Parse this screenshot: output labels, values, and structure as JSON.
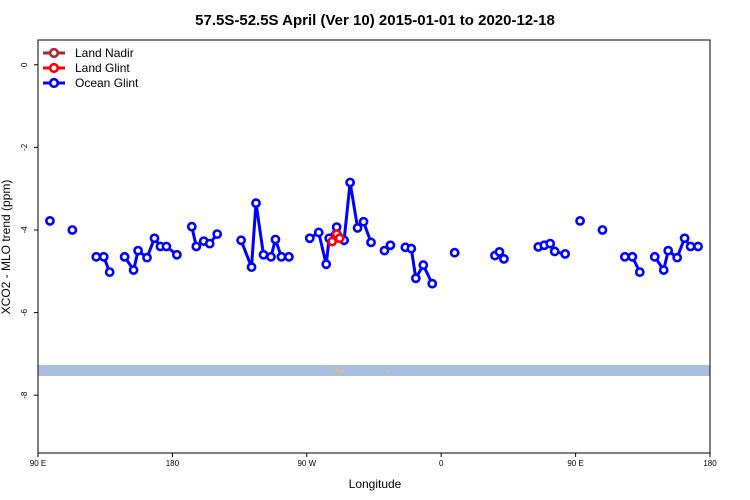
{
  "chart_data": {
    "type": "line",
    "title": "57.5S-52.5S April (Ver 10)   2015-01-01 to 2020-12-18",
    "xlabel": "Longitude",
    "ylabel": "XCO2 - MLO trend (ppm)",
    "x_ticks": [
      {
        "value": 90,
        "label": "90 E"
      },
      {
        "value": 180,
        "label": "180"
      },
      {
        "value": 270,
        "label": "90 W"
      },
      {
        "value": 360,
        "label": "0"
      },
      {
        "value": 450,
        "label": "90 E"
      },
      {
        "value": 540,
        "label": "180"
      }
    ],
    "xlim": [
      90,
      540
    ],
    "y_ticks": [
      0,
      -2,
      -4,
      -6,
      -8
    ],
    "ylim": [
      -9.4,
      0.6
    ],
    "grid": false,
    "legend": "top-left",
    "series": [
      {
        "name": "Land Nadir",
        "color": "#a52a2a",
        "segments": []
      },
      {
        "name": "Land Glint",
        "color": "#ff0000",
        "segments": [
          [
            [
              287,
              -4.28
            ],
            [
              290,
              -4.1
            ],
            [
              292,
              -4.2
            ]
          ]
        ]
      },
      {
        "name": "Ocean Glint",
        "color": "#0000ff",
        "segments": [
          [
            [
              98,
              -3.78
            ]
          ],
          [
            [
              113,
              -4.0
            ]
          ],
          [
            [
              129,
              -4.65
            ],
            [
              134,
              -4.65
            ],
            [
              138,
              -5.02
            ]
          ],
          [
            [
              148,
              -4.65
            ],
            [
              154,
              -4.97
            ],
            [
              157,
              -4.5
            ],
            [
              163,
              -4.67
            ],
            [
              168,
              -4.2
            ],
            [
              172,
              -4.4
            ],
            [
              176,
              -4.4
            ],
            [
              183,
              -4.6
            ]
          ],
          [
            [
              193,
              -3.92
            ],
            [
              196,
              -4.4
            ],
            [
              201,
              -4.27
            ],
            [
              205,
              -4.33
            ],
            [
              210,
              -4.1
            ]
          ],
          [
            [
              226,
              -4.25
            ],
            [
              233,
              -4.9
            ],
            [
              236,
              -3.35
            ],
            [
              241,
              -4.6
            ],
            [
              246,
              -4.65
            ],
            [
              249,
              -4.23
            ],
            [
              253,
              -4.65
            ],
            [
              258,
              -4.65
            ]
          ],
          [
            [
              272,
              -4.2
            ],
            [
              278,
              -4.06
            ],
            [
              283,
              -4.83
            ],
            [
              285,
              -4.2
            ],
            [
              290,
              -3.93
            ],
            [
              295,
              -4.25
            ],
            [
              299,
              -2.85
            ],
            [
              304,
              -3.95
            ],
            [
              308,
              -3.8
            ],
            [
              313,
              -4.3
            ]
          ],
          [
            [
              322,
              -4.5
            ],
            [
              326,
              -4.37
            ]
          ],
          [
            [
              336,
              -4.42
            ],
            [
              340,
              -4.45
            ],
            [
              343,
              -5.17
            ],
            [
              348,
              -4.85
            ],
            [
              354,
              -5.3
            ]
          ],
          [
            [
              369,
              -4.55
            ]
          ],
          [
            [
              396,
              -4.62
            ],
            [
              399,
              -4.53
            ],
            [
              402,
              -4.7
            ]
          ],
          [
            [
              425,
              -4.41
            ],
            [
              429,
              -4.37
            ],
            [
              433,
              -4.33
            ],
            [
              436,
              -4.52
            ],
            [
              443,
              -4.58
            ]
          ],
          [
            [
              453,
              -3.78
            ]
          ],
          [
            [
              468,
              -4.0
            ]
          ],
          [
            [
              483,
              -4.65
            ],
            [
              488,
              -4.65
            ],
            [
              493,
              -5.02
            ]
          ],
          [
            [
              503,
              -4.65
            ],
            [
              509,
              -4.97
            ],
            [
              512,
              -4.5
            ],
            [
              518,
              -4.67
            ],
            [
              523,
              -4.2
            ],
            [
              527,
              -4.4
            ],
            [
              532,
              -4.4
            ]
          ]
        ]
      }
    ],
    "colors": {
      "band": "#a8bfdf",
      "band_speck": "#f2c14e"
    }
  }
}
